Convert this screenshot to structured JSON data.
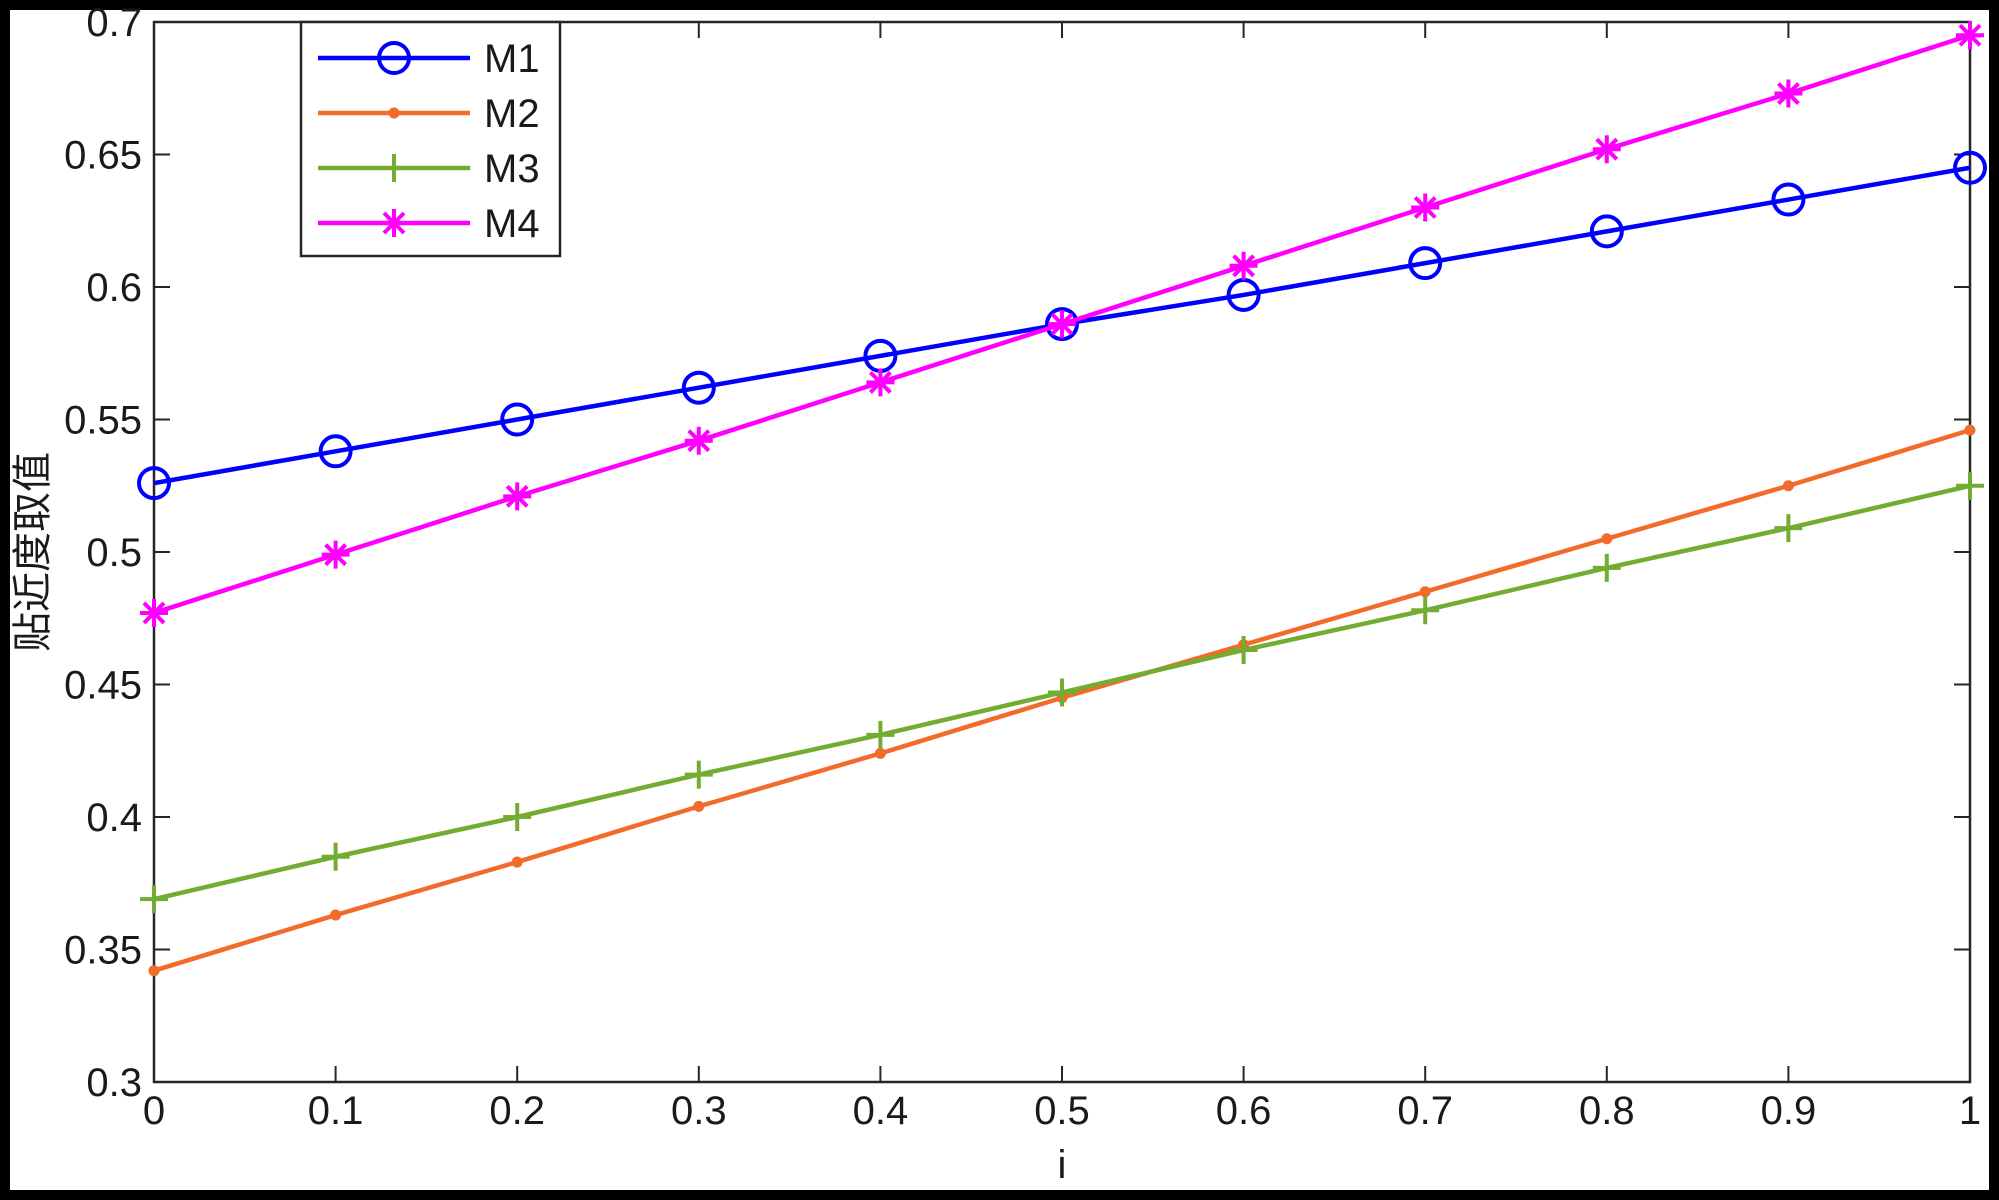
{
  "chart_data": {
    "type": "line",
    "title": "",
    "xlabel": "i",
    "ylabel": "贴近度取值",
    "xlim": [
      0,
      1
    ],
    "ylim": [
      0.3,
      0.7
    ],
    "xticks": [
      0,
      0.1,
      0.2,
      0.3,
      0.4,
      0.5,
      0.6,
      0.7,
      0.8,
      0.9,
      1
    ],
    "xtick_labels": [
      "0",
      "0.1",
      "0.2",
      "0.3",
      "0.4",
      "0.5",
      "0.6",
      "0.7",
      "0.8",
      "0.9",
      "1"
    ],
    "yticks": [
      0.3,
      0.35,
      0.4,
      0.45,
      0.5,
      0.55,
      0.6,
      0.65,
      0.7
    ],
    "ytick_labels": [
      "0.3",
      "0.35",
      "0.4",
      "0.45",
      "0.5",
      "0.55",
      "0.6",
      "0.65",
      "0.7"
    ],
    "grid": false,
    "legend_position": "top-left",
    "x": [
      0,
      0.1,
      0.2,
      0.3,
      0.4,
      0.5,
      0.6,
      0.7,
      0.8,
      0.9,
      1
    ],
    "series": [
      {
        "name": "M1",
        "color": "#0000ff",
        "marker": "circle",
        "values": [
          0.526,
          0.538,
          0.55,
          0.562,
          0.574,
          0.586,
          0.597,
          0.609,
          0.621,
          0.633,
          0.645
        ]
      },
      {
        "name": "M2",
        "color": "#f26b2a",
        "marker": "dot",
        "values": [
          0.342,
          0.363,
          0.383,
          0.404,
          0.424,
          0.445,
          0.465,
          0.485,
          0.505,
          0.525,
          0.546
        ]
      },
      {
        "name": "M3",
        "color": "#72ac30",
        "marker": "plus",
        "values": [
          0.369,
          0.385,
          0.4,
          0.416,
          0.431,
          0.447,
          0.463,
          0.478,
          0.494,
          0.509,
          0.525
        ]
      },
      {
        "name": "M4",
        "color": "#ff00ff",
        "marker": "asterisk",
        "values": [
          0.477,
          0.499,
          0.521,
          0.542,
          0.564,
          0.586,
          0.608,
          0.63,
          0.652,
          0.673,
          0.695
        ]
      }
    ]
  }
}
